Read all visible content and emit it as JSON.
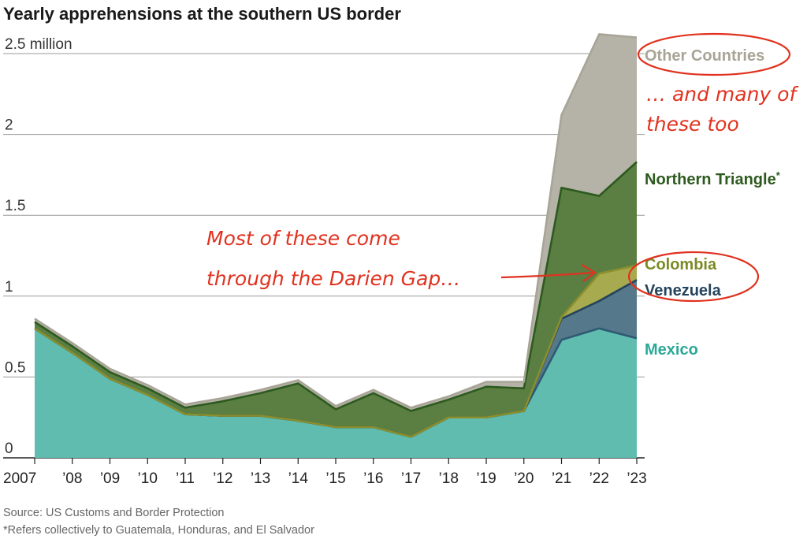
{
  "chart_data": {
    "type": "area",
    "title": "Yearly apprehensions at the southern US border",
    "x": [
      2007,
      2008,
      2009,
      2010,
      2011,
      2012,
      2013,
      2014,
      2015,
      2016,
      2017,
      2018,
      2019,
      2020,
      2021,
      2022,
      2023
    ],
    "x_tick_labels": [
      "2007",
      "’08",
      "’09",
      "’10",
      "’11",
      "’12",
      "’13",
      "’14",
      "’15",
      "’16",
      "’17",
      "’18",
      "’19",
      "’20",
      "’21",
      "’22",
      "’23"
    ],
    "y_tick_labels": [
      "0",
      "0.5",
      "1",
      "1.5",
      "2",
      "2.5 million"
    ],
    "y_ticks": [
      0,
      0.5,
      1,
      1.5,
      2,
      2.5
    ],
    "ylim": [
      0,
      2.6
    ],
    "stacked": true,
    "series": [
      {
        "name": "Mexico",
        "color": "#5fbcaf",
        "values": [
          0.8,
          0.65,
          0.49,
          0.39,
          0.27,
          0.26,
          0.26,
          0.23,
          0.19,
          0.19,
          0.13,
          0.25,
          0.25,
          0.29,
          0.73,
          0.8,
          0.74
        ]
      },
      {
        "name": "Venezuela",
        "color": "#55788a",
        "values": [
          0.0,
          0.0,
          0.0,
          0.0,
          0.0,
          0.0,
          0.0,
          0.0,
          0.0,
          0.0,
          0.0,
          0.0,
          0.0,
          0.0,
          0.13,
          0.17,
          0.36
        ]
      },
      {
        "name": "Colombia",
        "color": "#a7aa4e",
        "values": [
          0.0,
          0.0,
          0.0,
          0.0,
          0.0,
          0.0,
          0.0,
          0.0,
          0.0,
          0.0,
          0.0,
          0.0,
          0.0,
          0.0,
          0.01,
          0.17,
          0.09
        ]
      },
      {
        "name": "Northern Triangle*",
        "color": "#5b7f43",
        "values": [
          0.04,
          0.04,
          0.04,
          0.04,
          0.04,
          0.09,
          0.14,
          0.23,
          0.11,
          0.21,
          0.16,
          0.11,
          0.19,
          0.14,
          0.8,
          0.48,
          0.64
        ]
      },
      {
        "name": "Other Countries",
        "color": "#b5b2a7",
        "values": [
          0.02,
          0.02,
          0.02,
          0.02,
          0.02,
          0.02,
          0.02,
          0.02,
          0.02,
          0.02,
          0.02,
          0.02,
          0.03,
          0.04,
          0.45,
          1.0,
          0.77
        ]
      }
    ],
    "series_label_colors": {
      "Other Countries": "#a8a597",
      "Northern Triangle*": "#2d5a1e",
      "Colombia": "#7c8a25",
      "Venezuela": "#24435c",
      "Mexico": "#2aa898"
    },
    "grid": true,
    "legend": "right-of-plot, inline labels"
  },
  "annotations": {
    "other_note": "… and many of these too",
    "darien_note": [
      "Most of these come",
      "through the Darien Gap…"
    ],
    "color": "#e0321f"
  },
  "footer": {
    "source": "Source: US Customs and Border Protection",
    "footnote": "*Refers collectively to Guatemala, Honduras, and El Salvador"
  }
}
